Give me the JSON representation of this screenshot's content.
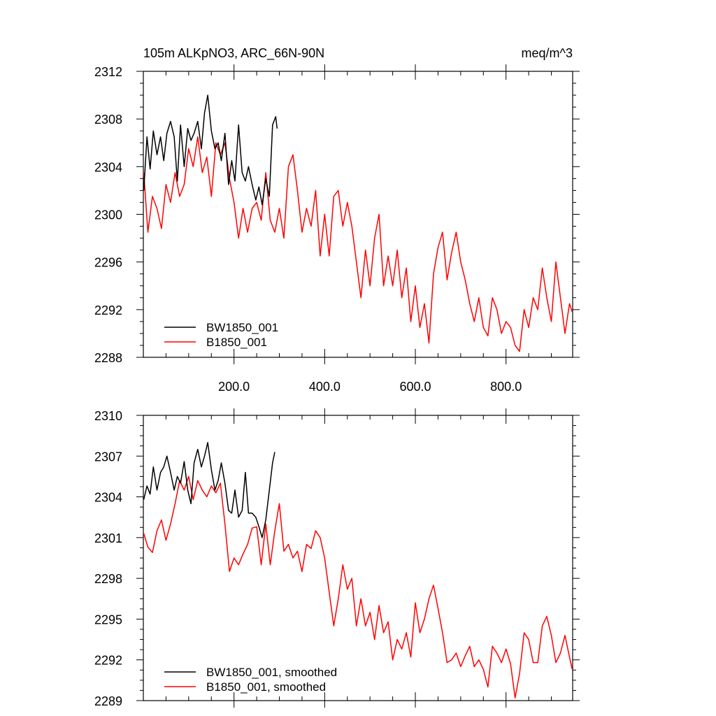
{
  "chart_data": [
    {
      "type": "line",
      "title": "105m ALKpNO3, ARC_66N-90N",
      "units": "meq/m^3",
      "xlim": [
        0,
        947
      ],
      "ylim": [
        2288,
        2312
      ],
      "x_ticks": [
        200,
        400,
        600,
        800
      ],
      "x_tick_labels": [
        "200.0",
        "400.0",
        "600.0",
        "800.0"
      ],
      "y_ticks": [
        2288,
        2292,
        2296,
        2300,
        2304,
        2308,
        2312
      ],
      "y_tick_labels": [
        "2288",
        "2292",
        "2296",
        "2300",
        "2304",
        "2308",
        "2312"
      ],
      "legend_location": "bottom-left",
      "series": [
        {
          "name": "BW1850_001",
          "color": "#000000",
          "x": [
            1,
            8,
            15,
            22,
            30,
            38,
            45,
            52,
            60,
            68,
            75,
            82,
            90,
            98,
            105,
            112,
            120,
            128,
            135,
            142,
            150,
            158,
            165,
            172,
            180,
            188,
            195,
            202,
            210,
            218,
            225,
            232,
            240,
            248,
            255,
            262,
            270,
            278,
            285,
            292,
            295
          ],
          "y": [
            2302,
            2306.5,
            2303.8,
            2307,
            2305,
            2306.5,
            2304.5,
            2306.8,
            2307.8,
            2306.5,
            2302.8,
            2307.5,
            2304,
            2307.2,
            2306.2,
            2306.8,
            2307.8,
            2305.5,
            2308.5,
            2310,
            2307,
            2305.5,
            2306,
            2304.5,
            2306.8,
            2302.5,
            2304.5,
            2302.8,
            2307.5,
            2303.5,
            2302.8,
            2304,
            2302.5,
            2301.2,
            2302.3,
            2300.8,
            2303,
            2301.5,
            2307.5,
            2308.2,
            2307.2
          ]
        },
        {
          "name": "B1850_001",
          "color": "#ff0000",
          "x": [
            1,
            10,
            20,
            30,
            40,
            50,
            60,
            70,
            80,
            90,
            100,
            110,
            120,
            130,
            140,
            150,
            160,
            170,
            180,
            190,
            200,
            210,
            220,
            230,
            240,
            250,
            260,
            270,
            280,
            290,
            300,
            310,
            320,
            330,
            340,
            350,
            360,
            370,
            380,
            390,
            400,
            410,
            420,
            430,
            440,
            450,
            460,
            470,
            480,
            490,
            500,
            510,
            520,
            530,
            540,
            550,
            560,
            570,
            580,
            590,
            600,
            610,
            620,
            630,
            640,
            650,
            660,
            670,
            680,
            690,
            700,
            710,
            720,
            730,
            740,
            750,
            760,
            770,
            780,
            790,
            800,
            810,
            820,
            830,
            840,
            850,
            860,
            870,
            880,
            890,
            900,
            910,
            920,
            930,
            940,
            946
          ],
          "y": [
            2303.5,
            2298.5,
            2301.5,
            2300.5,
            2298.8,
            2302.5,
            2301,
            2303.5,
            2301.5,
            2302.5,
            2305.5,
            2304,
            2306.5,
            2303.5,
            2304.8,
            2301.5,
            2306,
            2305,
            2306,
            2303,
            2301,
            2298,
            2300.5,
            2298.5,
            2300.5,
            2301,
            2299.5,
            2303.5,
            2299.5,
            2298.5,
            2300.5,
            2298,
            2304,
            2305,
            2302,
            2298.5,
            2300.5,
            2299,
            2302,
            2296.5,
            2300,
            2296.5,
            2301.5,
            2302,
            2299,
            2301,
            2299,
            2296,
            2293,
            2297,
            2294,
            2298,
            2300,
            2294,
            2296.5,
            2294,
            2297,
            2293,
            2295.5,
            2291,
            2294,
            2290.5,
            2292.5,
            2289.2,
            2295,
            2297.2,
            2298.5,
            2294.5,
            2296.8,
            2298.5,
            2296,
            2294.5,
            2292.5,
            2291,
            2293,
            2290.5,
            2289.8,
            2293,
            2292,
            2290,
            2291,
            2290.5,
            2289,
            2288.5,
            2292,
            2290.5,
            2293,
            2292,
            2295.5,
            2293,
            2291,
            2296,
            2293,
            2290,
            2292.5,
            2291.8
          ]
        }
      ]
    },
    {
      "type": "line",
      "title": "",
      "xlim": [
        0,
        947
      ],
      "ylim": [
        2289,
        2310
      ],
      "x_ticks": [
        200,
        400,
        600,
        800
      ],
      "x_tick_labels": [],
      "y_ticks": [
        2289,
        2292,
        2295,
        2298,
        2301,
        2304,
        2307,
        2310
      ],
      "y_tick_labels": [
        "2289",
        "2292",
        "2295",
        "2298",
        "2301",
        "2304",
        "2307",
        "2310"
      ],
      "legend_location": "bottom-left",
      "series": [
        {
          "name": "BW1850_001, smoothed",
          "color": "#000000",
          "x": [
            1,
            8,
            15,
            22,
            30,
            38,
            45,
            52,
            60,
            68,
            75,
            82,
            90,
            98,
            105,
            112,
            120,
            128,
            135,
            142,
            150,
            158,
            165,
            172,
            180,
            188,
            195,
            202,
            210,
            218,
            225,
            232,
            240,
            248,
            255,
            262,
            270,
            278,
            285,
            290
          ],
          "y": [
            2303.8,
            2304.8,
            2304.2,
            2306.2,
            2304.5,
            2305.8,
            2306.2,
            2307,
            2305.8,
            2304.5,
            2305.5,
            2305,
            2306.6,
            2304.5,
            2303.5,
            2306.5,
            2307.5,
            2306.2,
            2307,
            2308,
            2306,
            2304.5,
            2305.2,
            2306.5,
            2305,
            2303,
            2302.8,
            2304.5,
            2302.5,
            2303,
            2305.8,
            2302.8,
            2302.8,
            2302.5,
            2301.8,
            2301,
            2302.3,
            2304.5,
            2306.5,
            2307.3
          ]
        },
        {
          "name": "B1850_001, smoothed",
          "color": "#ff0000",
          "x": [
            1,
            10,
            20,
            30,
            40,
            50,
            60,
            70,
            80,
            90,
            100,
            110,
            120,
            130,
            140,
            150,
            160,
            170,
            180,
            190,
            200,
            210,
            220,
            230,
            240,
            250,
            260,
            270,
            280,
            290,
            300,
            310,
            320,
            330,
            340,
            350,
            360,
            370,
            380,
            390,
            400,
            410,
            420,
            430,
            440,
            450,
            460,
            470,
            480,
            490,
            500,
            510,
            520,
            530,
            540,
            550,
            560,
            570,
            580,
            590,
            600,
            610,
            620,
            630,
            640,
            650,
            660,
            670,
            680,
            690,
            700,
            710,
            720,
            730,
            740,
            750,
            760,
            770,
            780,
            790,
            800,
            810,
            820,
            830,
            840,
            850,
            860,
            870,
            880,
            890,
            900,
            910,
            920,
            930,
            940,
            946
          ],
          "y": [
            2301.3,
            2300.3,
            2299.9,
            2301.5,
            2302.3,
            2300.8,
            2302,
            2303.5,
            2305.2,
            2304.5,
            2305.5,
            2303.8,
            2305.2,
            2304.5,
            2304,
            2304.8,
            2304.3,
            2305,
            2302,
            2298.5,
            2299.5,
            2299,
            2299.8,
            2300.5,
            2301.7,
            2301.8,
            2299,
            2302,
            2299,
            2301.5,
            2303.5,
            2300,
            2300.5,
            2299.5,
            2300,
            2298.5,
            2300.5,
            2300.2,
            2301.5,
            2301,
            2299.5,
            2297,
            2294.5,
            2296.5,
            2299,
            2297.2,
            2298,
            2294.5,
            2296.5,
            2294.5,
            2295.5,
            2293.5,
            2296,
            2294,
            2294.8,
            2292,
            2293.5,
            2292.8,
            2294,
            2292.2,
            2296.2,
            2294,
            2295,
            2296.5,
            2297.5,
            2295.8,
            2294,
            2291.8,
            2292,
            2292.5,
            2291.5,
            2292.3,
            2293,
            2291.5,
            2292,
            2291.3,
            2290,
            2293,
            2292.5,
            2291.8,
            2292.8,
            2291.7,
            2289.2,
            2291,
            2294,
            2293.5,
            2291.8,
            2291.8,
            2294.5,
            2295.2,
            2293.8,
            2291.8,
            2292.5,
            2293.8,
            2292.2,
            2291.3
          ]
        }
      ]
    }
  ]
}
